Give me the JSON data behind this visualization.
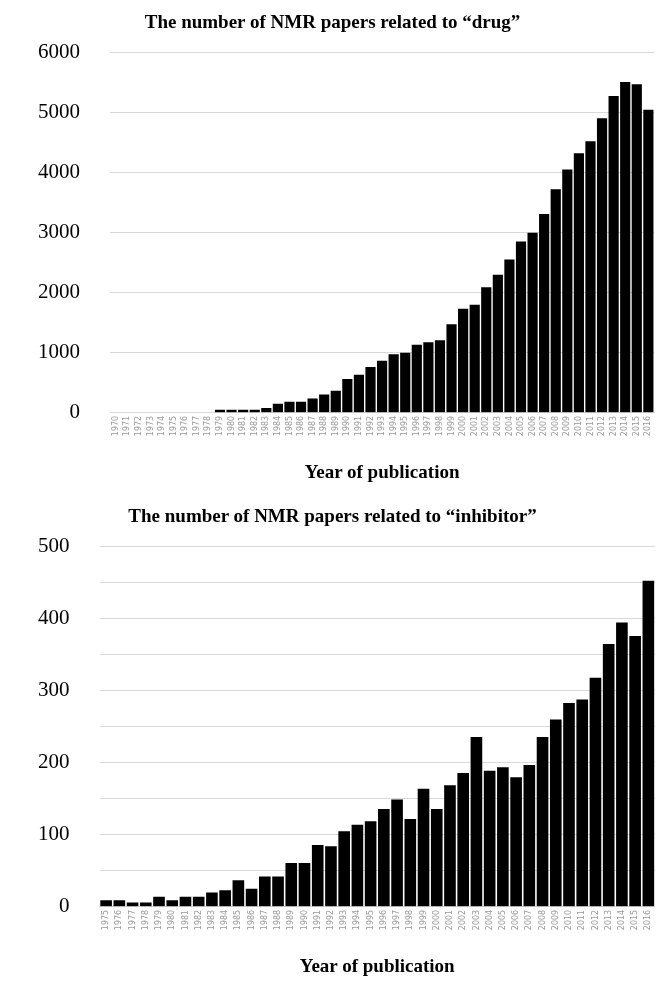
{
  "chart_data": [
    {
      "type": "bar",
      "title": "The number of NMR papers related to “drug”",
      "xlabel": "Year of publication",
      "categories": [
        "1970",
        "1971",
        "1972",
        "1973",
        "1974",
        "1975",
        "1976",
        "1977",
        "1978",
        "1979",
        "1980",
        "1981",
        "1982",
        "1983",
        "1984",
        "1985",
        "1986",
        "1987",
        "1988",
        "1989",
        "1990",
        "1991",
        "1992",
        "1993",
        "1994",
        "1995",
        "1996",
        "1997",
        "1998",
        "1999",
        "2000",
        "2001",
        "2002",
        "2003",
        "2004",
        "2005",
        "2006",
        "2007",
        "2008",
        "2009",
        "2010",
        "2011",
        "2012",
        "2013",
        "2014",
        "2015",
        "2016"
      ],
      "values": [
        0,
        0,
        0,
        0,
        0,
        0,
        0,
        0,
        0,
        50,
        50,
        50,
        50,
        80,
        150,
        185,
        185,
        240,
        305,
        370,
        565,
        635,
        765,
        870,
        975,
        1000,
        1135,
        1175,
        1210,
        1475,
        1735,
        1800,
        2095,
        2300,
        2555,
        2855,
        3000,
        3315,
        3725,
        4055,
        4325,
        4525,
        4910,
        5280,
        5515,
        5475,
        5050
      ],
      "color": "#000000",
      "ylim": [
        0,
        6000
      ],
      "yticks": [
        0,
        1000,
        2000,
        3000,
        4000,
        5000,
        6000
      ],
      "grid": "y",
      "legend": false
    },
    {
      "type": "bar",
      "title": "The number of NMR papers related to “inhibitor”",
      "xlabel": "Year of publication",
      "categories": [
        "1975",
        "1976",
        "1977",
        "1978",
        "1979",
        "1980",
        "1981",
        "1982",
        "1983",
        "1984",
        "1985",
        "1986",
        "1987",
        "1988",
        "1989",
        "1990",
        "1991",
        "1992",
        "1993",
        "1994",
        "1995",
        "1996",
        "1997",
        "1998",
        "1999",
        "2000",
        "2001",
        "2002",
        "2003",
        "2004",
        "2005",
        "2006",
        "2007",
        "2008",
        "2009",
        "2010",
        "2011",
        "2012",
        "2013",
        "2014",
        "2015",
        "2016"
      ],
      "values": [
        9,
        9,
        6,
        6,
        14,
        9,
        14,
        14,
        20,
        23,
        37,
        25,
        42,
        42,
        61,
        61,
        86,
        84,
        105,
        114,
        119,
        136,
        149,
        122,
        164,
        136,
        169,
        186,
        236,
        189,
        194,
        180,
        197,
        236,
        260,
        283,
        288,
        318,
        365,
        395,
        376,
        453
      ],
      "color": "#000000",
      "ylim": [
        0,
        500
      ],
      "yticks": [
        0,
        {
          "value": 50,
          "label": null
        },
        100,
        {
          "value": 150,
          "label": null
        },
        200,
        {
          "value": 250,
          "label": null
        },
        300,
        {
          "value": 350,
          "label": null
        },
        400,
        {
          "value": 450,
          "label": null
        },
        500
      ],
      "grid": "y",
      "legend": false
    }
  ]
}
